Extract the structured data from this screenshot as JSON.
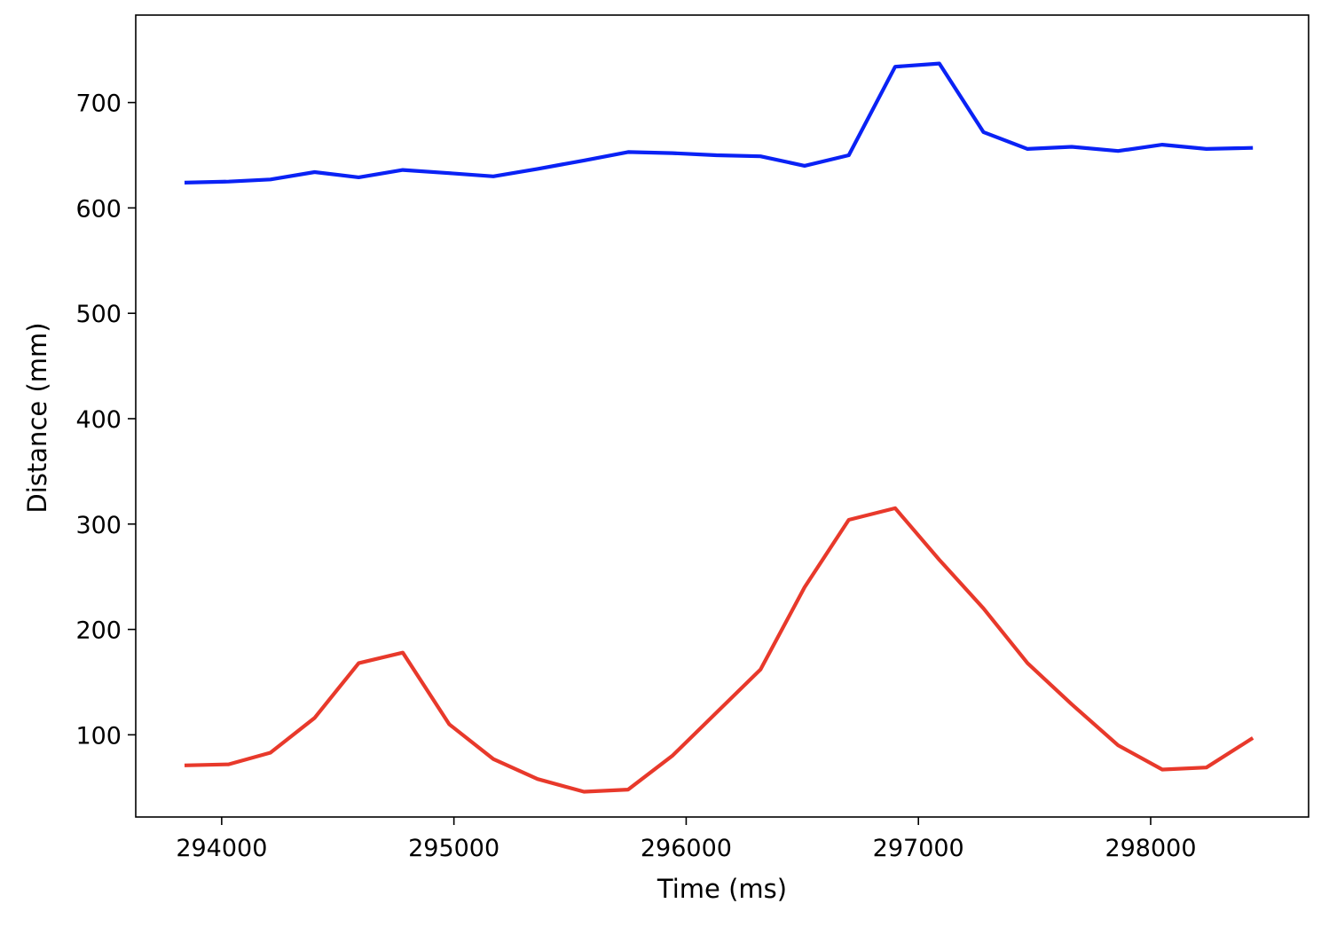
{
  "chart_data": {
    "type": "line",
    "title": "",
    "xlabel": "Time (ms)",
    "ylabel": "Distance (mm)",
    "xlim": [
      293630,
      298680
    ],
    "ylim": [
      22,
      783
    ],
    "xticks": [
      294000,
      295000,
      296000,
      297000,
      298000
    ],
    "yticks": [
      100,
      200,
      300,
      400,
      500,
      600,
      700
    ],
    "grid": false,
    "legend": "none",
    "series": [
      {
        "color": "#0a22f5",
        "x": [
          293840,
          294030,
          294210,
          294400,
          294590,
          294780,
          294980,
          295170,
          295360,
          295560,
          295750,
          295940,
          296130,
          296320,
          296510,
          296700,
          296900,
          297090,
          297280,
          297470,
          297660,
          297860,
          298050,
          298240,
          298440
        ],
        "y": [
          624,
          625,
          627,
          634,
          629,
          636,
          633,
          630,
          637,
          645,
          653,
          652,
          650,
          649,
          640,
          650,
          734,
          737,
          672,
          656,
          658,
          654,
          660,
          656,
          657
        ]
      },
      {
        "color": "#e8392b",
        "x": [
          293840,
          294030,
          294210,
          294400,
          294590,
          294780,
          294980,
          295170,
          295360,
          295560,
          295750,
          295940,
          296130,
          296320,
          296510,
          296700,
          296900,
          297090,
          297280,
          297470,
          297660,
          297860,
          298050,
          298240,
          298440
        ],
        "y": [
          71,
          72,
          83,
          116,
          168,
          178,
          110,
          77,
          58,
          46,
          48,
          80,
          121,
          162,
          240,
          304,
          315,
          266,
          220,
          168,
          129,
          90,
          67,
          69,
          97
        ]
      }
    ]
  }
}
